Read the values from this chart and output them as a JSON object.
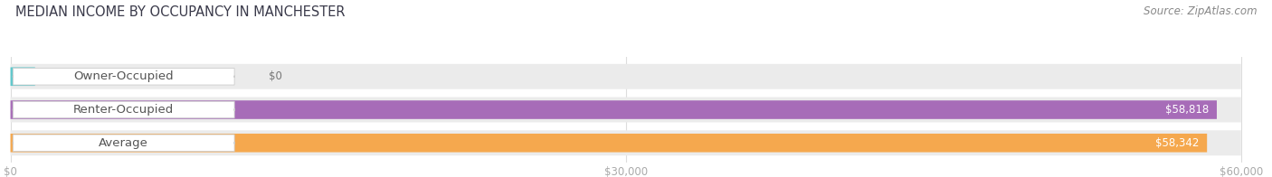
{
  "title": "MEDIAN INCOME BY OCCUPANCY IN MANCHESTER",
  "source": "Source: ZipAtlas.com",
  "categories": [
    "Owner-Occupied",
    "Renter-Occupied",
    "Average"
  ],
  "values": [
    0,
    58818,
    58342
  ],
  "value_labels": [
    "$0",
    "$58,818",
    "$58,342"
  ],
  "bar_colors": [
    "#5ec8cc",
    "#a76cb8",
    "#f5a84e"
  ],
  "bar_bg_color": "#ebebeb",
  "xlim_min": 0,
  "xlim_max": 60000,
  "xtick_values": [
    0,
    30000,
    60000
  ],
  "xtick_labels": [
    "$0",
    "$30,000",
    "$60,000"
  ],
  "title_fontsize": 10.5,
  "source_fontsize": 8.5,
  "label_fontsize": 9.5,
  "value_fontsize": 8.5,
  "background_color": "#ffffff",
  "title_color": "#3a3a4a",
  "source_color": "#888888",
  "label_color": "#555555",
  "tick_color": "#aaaaaa",
  "grid_color": "#dddddd"
}
